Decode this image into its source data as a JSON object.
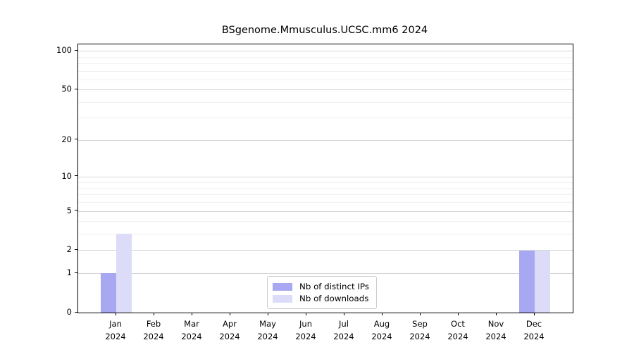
{
  "title": "BSgenome.Mmusculus.UCSC.mm6 2024",
  "colors": {
    "distinct_ips": "#a8a8f2",
    "downloads": "#dcdcf8",
    "grid_major": "#d6d6d6",
    "grid_minor": "#f0f0f0",
    "axis": "#000000",
    "legend_border": "#cccccc",
    "background": "#ffffff",
    "text": "#000000"
  },
  "legend": {
    "items": [
      {
        "label": "Nb of distinct IPs",
        "color": "#a8a8f2"
      },
      {
        "label": "Nb of downloads",
        "color": "#dcdcf8"
      }
    ]
  },
  "chart_data": {
    "type": "bar",
    "title": "BSgenome.Mmusculus.UCSC.mm6 2024",
    "categories": [
      "Jan 2024",
      "Feb 2024",
      "Mar 2024",
      "Apr 2024",
      "May 2024",
      "Jun 2024",
      "Jul 2024",
      "Aug 2024",
      "Sep 2024",
      "Oct 2024",
      "Nov 2024",
      "Dec 2024"
    ],
    "series": [
      {
        "name": "Nb of distinct IPs",
        "color": "#a8a8f2",
        "values": [
          1,
          0,
          0,
          0,
          0,
          0,
          0,
          0,
          0,
          0,
          0,
          2
        ]
      },
      {
        "name": "Nb of downloads",
        "color": "#dcdcf8",
        "values": [
          3,
          0,
          0,
          0,
          0,
          0,
          0,
          0,
          0,
          0,
          0,
          2
        ]
      }
    ],
    "xlabel": "",
    "ylabel": "",
    "yscale": "log1p",
    "yticks_major": [
      0,
      1,
      2,
      5,
      10,
      20,
      50,
      100
    ],
    "yticks_minor": [
      3,
      4,
      6,
      7,
      8,
      9,
      30,
      40,
      60,
      70,
      80,
      90
    ],
    "ylim": [
      0,
      112
    ],
    "grid": "horizontal-only",
    "legend_position": "lower center"
  }
}
